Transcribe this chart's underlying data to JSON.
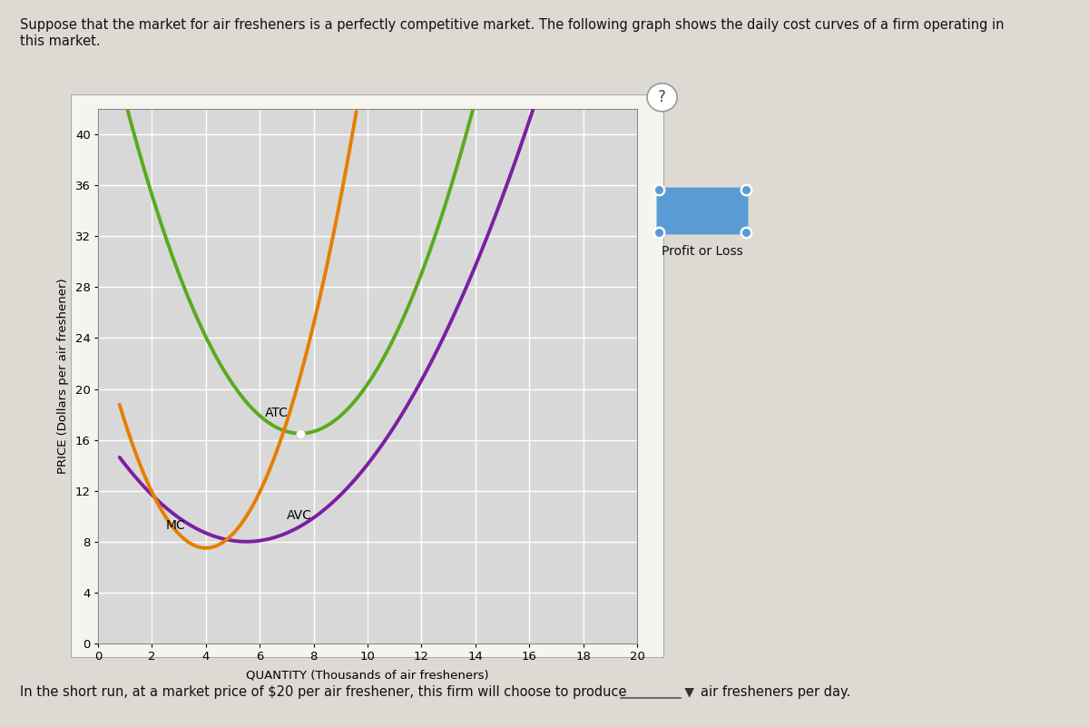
{
  "title_line1": "Suppose that the market for air fresheners is a perfectly competitive market. The following graph shows the daily cost curves of a firm operating in",
  "title_line2": "this market.",
  "xlabel": "QUANTITY (Thousands of air fresheners)",
  "ylabel": "PRICE (Dollars per air freshener)",
  "xlim": [
    0,
    20
  ],
  "ylim": [
    0,
    42
  ],
  "xticks": [
    0,
    2,
    4,
    6,
    8,
    10,
    12,
    14,
    16,
    18,
    20
  ],
  "yticks": [
    0,
    4,
    8,
    12,
    16,
    20,
    24,
    28,
    32,
    36,
    40
  ],
  "atc_color": "#5aaa1e",
  "avc_color": "#7b1fa2",
  "mc_color": "#e67e00",
  "background_color": "#ddd9d3",
  "plot_bg_color": "#d8d8d8",
  "chart_frame_color": "#bbbbbb",
  "grid_color": "#ffffff",
  "legend_label": "Profit or Loss",
  "bottom_text1": "In the short run, at a market price of $20 per air freshener, this firm will choose to produce",
  "bottom_text2": "air fresheners per day.",
  "question_mark": "?",
  "atc_label": "ATC",
  "avc_label": "AVC",
  "mc_label": "MC",
  "lw": 2.8
}
